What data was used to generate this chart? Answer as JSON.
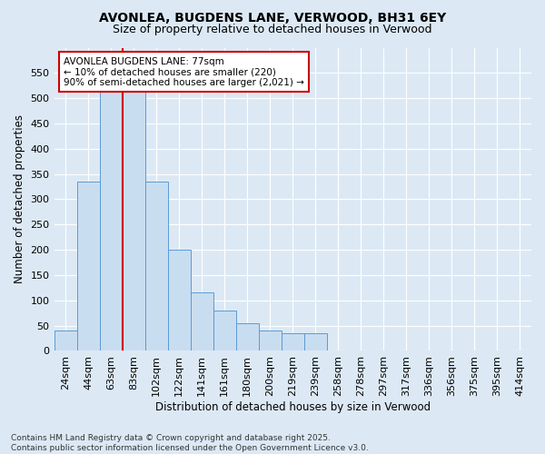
{
  "title1": "AVONLEA, BUGDENS LANE, VERWOOD, BH31 6EY",
  "title2": "Size of property relative to detached houses in Verwood",
  "xlabel": "Distribution of detached houses by size in Verwood",
  "ylabel": "Number of detached properties",
  "categories": [
    "24sqm",
    "44sqm",
    "63sqm",
    "83sqm",
    "102sqm",
    "122sqm",
    "141sqm",
    "161sqm",
    "180sqm",
    "200sqm",
    "219sqm",
    "239sqm",
    "258sqm",
    "278sqm",
    "297sqm",
    "317sqm",
    "336sqm",
    "356sqm",
    "375sqm",
    "395sqm",
    "414sqm"
  ],
  "values": [
    40,
    335,
    520,
    550,
    335,
    200,
    115,
    80,
    55,
    40,
    35,
    35,
    0,
    0,
    0,
    0,
    0,
    0,
    0,
    0,
    0
  ],
  "bar_color": "#c9ddf0",
  "bar_edge_color": "#5b9bd5",
  "vline_color": "#cc0000",
  "annotation_text": "AVONLEA BUGDENS LANE: 77sqm\n← 10% of detached houses are smaller (220)\n90% of semi-detached houses are larger (2,021) →",
  "annotation_box_color": "#ffffff",
  "annotation_box_edge": "#cc0000",
  "ylim": [
    0,
    600
  ],
  "yticks": [
    0,
    50,
    100,
    150,
    200,
    250,
    300,
    350,
    400,
    450,
    500,
    550
  ],
  "background_color": "#dce9f5",
  "plot_bg_color": "#dce9f5",
  "footer_text": "Contains HM Land Registry data © Crown copyright and database right 2025.\nContains public sector information licensed under the Open Government Licence v3.0.",
  "title1_fontsize": 10,
  "title2_fontsize": 9,
  "xlabel_fontsize": 8.5,
  "ylabel_fontsize": 8.5,
  "tick_fontsize": 8,
  "footer_fontsize": 6.5,
  "annot_fontsize": 7.5
}
